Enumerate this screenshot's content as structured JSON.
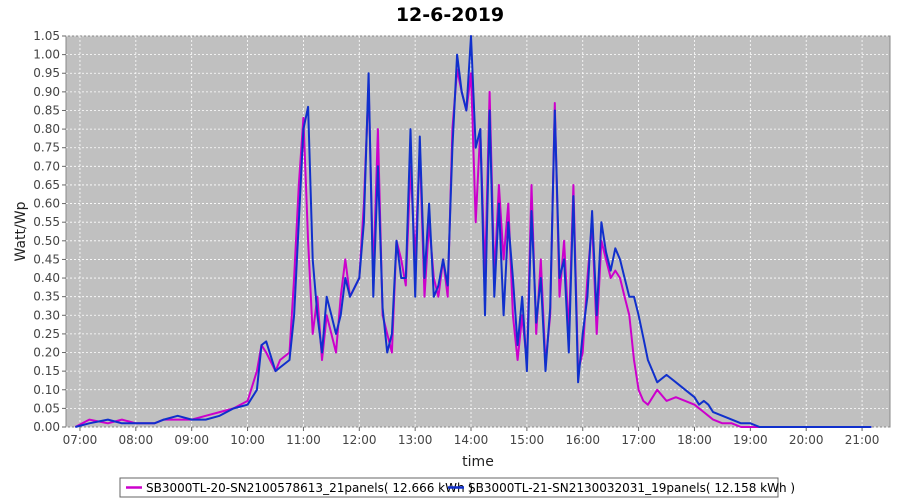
{
  "chart_data": {
    "type": "line",
    "title": "12-6-2019",
    "xlabel": "time",
    "ylabel": "Watt/Wp",
    "ylim": [
      0,
      1.05
    ],
    "xlim": [
      "06:45",
      "21:30"
    ],
    "x_ticks": [
      "07:00",
      "08:00",
      "09:00",
      "10:00",
      "11:00",
      "12:00",
      "13:00",
      "14:00",
      "15:00",
      "16:00",
      "17:00",
      "18:00",
      "19:00",
      "20:00",
      "21:00"
    ],
    "y_ticks": [
      "0.00",
      "0.05",
      "0.10",
      "0.15",
      "0.20",
      "0.25",
      "0.30",
      "0.35",
      "0.40",
      "0.45",
      "0.50",
      "0.55",
      "0.60",
      "0.65",
      "0.70",
      "0.75",
      "0.80",
      "0.85",
      "0.90",
      "0.95",
      "1.00",
      "1.05"
    ],
    "grid": true,
    "legend_position": "bottom",
    "series": [
      {
        "name": "SB3000TL-20-SN2100578613_21panels( 12.666 kWh )",
        "color": "#cc00cc",
        "x": [
          "06:55",
          "07:10",
          "07:30",
          "07:45",
          "08:00",
          "08:20",
          "08:30",
          "08:45",
          "09:00",
          "09:15",
          "09:30",
          "09:45",
          "10:00",
          "10:10",
          "10:15",
          "10:20",
          "10:30",
          "10:35",
          "10:45",
          "10:50",
          "10:55",
          "11:00",
          "11:05",
          "11:10",
          "11:15",
          "11:20",
          "11:25",
          "11:30",
          "11:35",
          "11:40",
          "11:45",
          "11:50",
          "12:00",
          "12:05",
          "12:10",
          "12:15",
          "12:20",
          "12:25",
          "12:30",
          "12:35",
          "12:40",
          "12:45",
          "12:50",
          "12:55",
          "13:00",
          "13:05",
          "13:10",
          "13:15",
          "13:20",
          "13:25",
          "13:30",
          "13:35",
          "13:40",
          "13:45",
          "13:50",
          "13:55",
          "14:00",
          "14:05",
          "14:10",
          "14:15",
          "14:20",
          "14:25",
          "14:30",
          "14:35",
          "14:40",
          "14:45",
          "14:50",
          "14:55",
          "15:00",
          "15:05",
          "15:10",
          "15:15",
          "15:20",
          "15:25",
          "15:30",
          "15:35",
          "15:40",
          "15:45",
          "15:50",
          "15:55",
          "16:00",
          "16:05",
          "16:10",
          "16:15",
          "16:20",
          "16:25",
          "16:30",
          "16:35",
          "16:40",
          "16:45",
          "16:50",
          "16:55",
          "17:00",
          "17:05",
          "17:10",
          "17:15",
          "17:20",
          "17:30",
          "17:40",
          "17:50",
          "18:00",
          "18:05",
          "18:10",
          "18:15",
          "18:20",
          "18:30",
          "18:40",
          "18:50",
          "19:00",
          "19:10",
          "19:20",
          "19:30",
          "19:40",
          "19:50",
          "20:00",
          "20:10",
          "20:20",
          "20:30",
          "20:40",
          "20:50",
          "21:00",
          "21:10"
        ],
        "values": [
          0.0,
          0.02,
          0.01,
          0.02,
          0.01,
          0.01,
          0.02,
          0.02,
          0.02,
          0.03,
          0.04,
          0.05,
          0.07,
          0.15,
          0.22,
          0.2,
          0.15,
          0.18,
          0.2,
          0.4,
          0.65,
          0.83,
          0.5,
          0.25,
          0.35,
          0.18,
          0.3,
          0.25,
          0.2,
          0.35,
          0.45,
          0.35,
          0.4,
          0.6,
          0.92,
          0.4,
          0.8,
          0.3,
          0.25,
          0.2,
          0.5,
          0.45,
          0.38,
          0.7,
          0.45,
          0.75,
          0.35,
          0.55,
          0.4,
          0.35,
          0.45,
          0.35,
          0.8,
          0.96,
          0.9,
          0.85,
          0.95,
          0.55,
          0.8,
          0.4,
          0.9,
          0.4,
          0.65,
          0.45,
          0.6,
          0.3,
          0.18,
          0.3,
          0.17,
          0.65,
          0.25,
          0.45,
          0.17,
          0.3,
          0.87,
          0.35,
          0.5,
          0.25,
          0.65,
          0.15,
          0.2,
          0.4,
          0.55,
          0.25,
          0.5,
          0.45,
          0.4,
          0.42,
          0.4,
          0.35,
          0.3,
          0.18,
          0.1,
          0.07,
          0.06,
          0.08,
          0.1,
          0.07,
          0.08,
          0.07,
          0.06,
          0.05,
          0.04,
          0.03,
          0.02,
          0.01,
          0.01,
          0.0,
          0.0,
          0.0,
          0.0,
          0.0,
          0.0,
          0.0,
          0.0,
          0.0,
          0.0,
          0.0,
          0.0,
          0.0,
          0.0,
          0.0
        ]
      },
      {
        "name": "SB3000TL-21-SN2130032031_19panels( 12.158 kWh )",
        "color": "#1030cc",
        "x": [
          "06:55",
          "07:10",
          "07:30",
          "07:45",
          "08:00",
          "08:20",
          "08:30",
          "08:45",
          "09:00",
          "09:15",
          "09:30",
          "09:45",
          "10:00",
          "10:10",
          "10:15",
          "10:20",
          "10:30",
          "10:35",
          "10:45",
          "10:50",
          "10:55",
          "11:00",
          "11:05",
          "11:10",
          "11:15",
          "11:20",
          "11:25",
          "11:30",
          "11:35",
          "11:40",
          "11:45",
          "11:50",
          "12:00",
          "12:05",
          "12:10",
          "12:15",
          "12:20",
          "12:25",
          "12:30",
          "12:35",
          "12:40",
          "12:45",
          "12:50",
          "12:55",
          "13:00",
          "13:05",
          "13:10",
          "13:15",
          "13:20",
          "13:25",
          "13:30",
          "13:35",
          "13:40",
          "13:45",
          "13:50",
          "13:55",
          "14:00",
          "14:05",
          "14:10",
          "14:15",
          "14:20",
          "14:25",
          "14:30",
          "14:35",
          "14:40",
          "14:45",
          "14:50",
          "14:55",
          "15:00",
          "15:05",
          "15:10",
          "15:15",
          "15:20",
          "15:25",
          "15:30",
          "15:35",
          "15:40",
          "15:45",
          "15:50",
          "15:55",
          "16:00",
          "16:05",
          "16:10",
          "16:15",
          "16:20",
          "16:25",
          "16:30",
          "16:35",
          "16:40",
          "16:45",
          "16:50",
          "16:55",
          "17:00",
          "17:05",
          "17:10",
          "17:15",
          "17:20",
          "17:30",
          "17:40",
          "17:50",
          "18:00",
          "18:05",
          "18:10",
          "18:15",
          "18:20",
          "18:30",
          "18:40",
          "18:50",
          "19:00",
          "19:10",
          "19:20",
          "19:30",
          "19:40",
          "19:50",
          "20:00",
          "20:10",
          "20:20",
          "20:30",
          "20:40",
          "20:50",
          "21:00",
          "21:10"
        ],
        "values": [
          0.0,
          0.01,
          0.02,
          0.01,
          0.01,
          0.01,
          0.02,
          0.03,
          0.02,
          0.02,
          0.03,
          0.05,
          0.06,
          0.1,
          0.22,
          0.23,
          0.15,
          0.16,
          0.18,
          0.3,
          0.55,
          0.8,
          0.86,
          0.45,
          0.3,
          0.2,
          0.35,
          0.3,
          0.25,
          0.3,
          0.4,
          0.35,
          0.4,
          0.55,
          0.95,
          0.35,
          0.7,
          0.32,
          0.2,
          0.25,
          0.5,
          0.4,
          0.4,
          0.8,
          0.35,
          0.78,
          0.4,
          0.6,
          0.35,
          0.38,
          0.45,
          0.38,
          0.75,
          1.0,
          0.9,
          0.85,
          1.05,
          0.75,
          0.8,
          0.3,
          0.85,
          0.35,
          0.6,
          0.3,
          0.55,
          0.4,
          0.22,
          0.35,
          0.15,
          0.58,
          0.28,
          0.4,
          0.15,
          0.32,
          0.85,
          0.4,
          0.45,
          0.2,
          0.62,
          0.12,
          0.25,
          0.35,
          0.58,
          0.3,
          0.55,
          0.47,
          0.42,
          0.48,
          0.45,
          0.4,
          0.35,
          0.35,
          0.3,
          0.24,
          0.18,
          0.15,
          0.12,
          0.14,
          0.12,
          0.1,
          0.08,
          0.06,
          0.07,
          0.06,
          0.04,
          0.03,
          0.02,
          0.01,
          0.01,
          0.0,
          0.0,
          0.0,
          0.0,
          0.0,
          0.0,
          0.0,
          0.0,
          0.0,
          0.0,
          0.0,
          0.0,
          0.0
        ]
      }
    ]
  }
}
